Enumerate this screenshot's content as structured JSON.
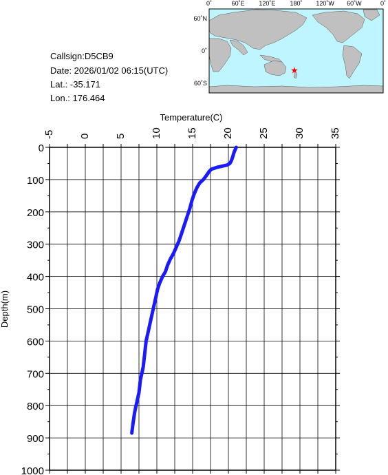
{
  "info": {
    "callsign": "Callsign:D5CB9",
    "date": "Date:  2026/01/02 06:15(UTC)",
    "lat": "Lat.:  -35.171",
    "lon": "Lon.:  176.464"
  },
  "map": {
    "top_labels": [
      "0˚",
      "60˚E",
      "120˚E",
      "180˚",
      "120˚W",
      "60˚W",
      "0˚"
    ],
    "left_labels": [
      "60˚N",
      "0˚",
      "60˚S"
    ],
    "marker": {
      "lat": -35.171,
      "lon": 176.464,
      "symbol": "★"
    },
    "colors": {
      "ocean": "#bff5ff",
      "land": "#c0c0c0",
      "marker": "#ff0000"
    }
  },
  "chart_data": {
    "type": "line",
    "title": "",
    "xlabel": "Temperature(C)",
    "ylabel": "Depth(m)",
    "xlim": [
      -5,
      35
    ],
    "ylim": [
      1000,
      0
    ],
    "x_ticks": [
      -5,
      0,
      5,
      10,
      15,
      20,
      25,
      30,
      35
    ],
    "y_ticks": [
      0,
      100,
      200,
      300,
      400,
      500,
      600,
      700,
      800,
      900,
      1000
    ],
    "grid": true,
    "line_color": "#1a1aff",
    "series": [
      {
        "x": [
          21.1,
          20.8,
          20.6,
          20.4,
          20.2,
          19.8,
          19.2,
          18.4,
          17.6,
          17.3,
          17.0,
          16.5,
          16.0,
          15.6,
          15.2,
          14.9,
          14.6,
          14.3,
          14.0,
          13.7,
          13.4,
          13.1,
          12.7,
          12.3,
          11.9,
          11.5,
          11.2,
          10.8,
          10.4,
          10.1,
          9.9,
          9.7,
          9.5,
          9.3,
          9.1,
          8.9,
          8.7,
          8.5,
          8.3,
          8.1,
          7.9,
          7.7,
          7.5,
          7.3,
          7.1,
          6.9,
          6.7,
          6.5
        ],
        "y": [
          0,
          15,
          30,
          42,
          50,
          55,
          58,
          62,
          68,
          75,
          85,
          100,
          110,
          125,
          145,
          165,
          190,
          210,
          230,
          250,
          270,
          290,
          310,
          330,
          345,
          365,
          385,
          400,
          420,
          440,
          460,
          480,
          500,
          520,
          540,
          560,
          580,
          600,
          640,
          680,
          700,
          720,
          760,
          780,
          800,
          820,
          850,
          885
        ]
      }
    ]
  }
}
